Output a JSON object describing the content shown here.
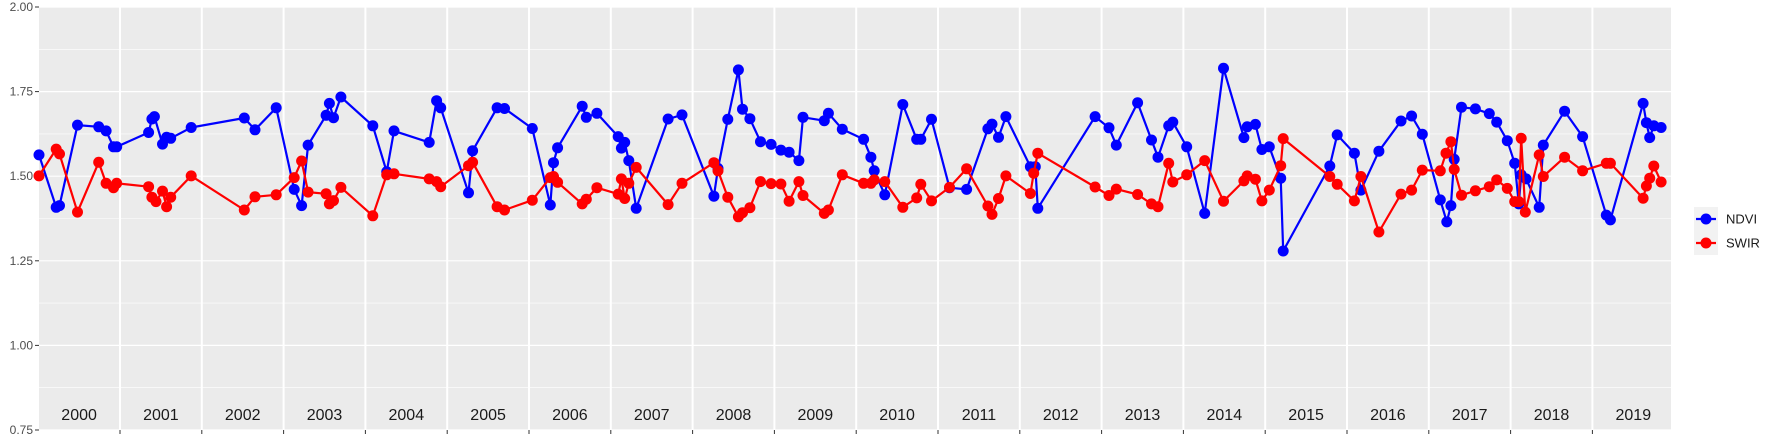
{
  "chart_data": {
    "type": "line",
    "title": "",
    "xlabel": "",
    "ylabel": "",
    "xlim": [
      2000,
      2019.95
    ],
    "ylim": [
      0.75,
      2.0
    ],
    "y_ticks": [
      "0.75",
      "1.00",
      "1.25",
      "1.50",
      "1.75",
      "2.00"
    ],
    "y_tick_values": [
      0.75,
      1.0,
      1.25,
      1.5,
      1.75,
      2.0
    ],
    "year_labels": [
      "2000",
      "2001",
      "2002",
      "2003",
      "2004",
      "2005",
      "2006",
      "2007",
      "2008",
      "2009",
      "2010",
      "2011",
      "2012",
      "2013",
      "2014",
      "2015",
      "2016",
      "2017",
      "2018",
      "2019"
    ],
    "grid": true,
    "legend_position": "right",
    "series": [
      {
        "name": "NDVI",
        "color": "#0000ff",
        "points": [
          [
            2000.01,
            1.563
          ],
          [
            2000.22,
            1.408
          ],
          [
            2000.26,
            1.413
          ],
          [
            2000.48,
            1.651
          ],
          [
            2000.74,
            1.646
          ],
          [
            2000.83,
            1.634
          ],
          [
            2000.92,
            1.587
          ],
          [
            2000.96,
            1.587
          ],
          [
            2001.35,
            1.629
          ],
          [
            2001.39,
            1.669
          ],
          [
            2001.42,
            1.676
          ],
          [
            2001.52,
            1.595
          ],
          [
            2001.57,
            1.615
          ],
          [
            2001.62,
            1.612
          ],
          [
            2001.87,
            1.644
          ],
          [
            2002.52,
            1.672
          ],
          [
            2002.65,
            1.637
          ],
          [
            2002.91,
            1.702
          ],
          [
            2003.13,
            1.461
          ],
          [
            2003.22,
            1.413
          ],
          [
            2003.3,
            1.592
          ],
          [
            2003.52,
            1.68
          ],
          [
            2003.56,
            1.715
          ],
          [
            2003.61,
            1.673
          ],
          [
            2003.7,
            1.734
          ],
          [
            2004.09,
            1.649
          ],
          [
            2004.26,
            1.513
          ],
          [
            2004.35,
            1.634
          ],
          [
            2004.78,
            1.6
          ],
          [
            2004.87,
            1.723
          ],
          [
            2004.92,
            1.702
          ],
          [
            2005.26,
            1.451
          ],
          [
            2005.31,
            1.575
          ],
          [
            2005.61,
            1.702
          ],
          [
            2005.7,
            1.7
          ],
          [
            2006.04,
            1.641
          ],
          [
            2006.26,
            1.415
          ],
          [
            2006.3,
            1.54
          ],
          [
            2006.35,
            1.584
          ],
          [
            2006.65,
            1.707
          ],
          [
            2006.7,
            1.674
          ],
          [
            2006.83,
            1.686
          ],
          [
            2007.09,
            1.617
          ],
          [
            2007.13,
            1.583
          ],
          [
            2007.17,
            1.6
          ],
          [
            2007.22,
            1.546
          ],
          [
            2007.31,
            1.405
          ],
          [
            2007.7,
            1.669
          ],
          [
            2007.87,
            1.681
          ],
          [
            2008.26,
            1.441
          ],
          [
            2008.31,
            1.523
          ],
          [
            2008.43,
            1.668
          ],
          [
            2008.56,
            1.814
          ],
          [
            2008.61,
            1.698
          ],
          [
            2008.7,
            1.67
          ],
          [
            2008.83,
            1.602
          ],
          [
            2008.96,
            1.594
          ],
          [
            2009.08,
            1.577
          ],
          [
            2009.18,
            1.571
          ],
          [
            2009.3,
            1.546
          ],
          [
            2009.35,
            1.674
          ],
          [
            2009.61,
            1.664
          ],
          [
            2009.66,
            1.686
          ],
          [
            2009.83,
            1.639
          ],
          [
            2010.09,
            1.609
          ],
          [
            2010.18,
            1.556
          ],
          [
            2010.22,
            1.516
          ],
          [
            2010.35,
            1.445
          ],
          [
            2010.57,
            1.712
          ],
          [
            2010.74,
            1.609
          ],
          [
            2010.79,
            1.609
          ],
          [
            2010.92,
            1.668
          ],
          [
            2011.14,
            1.466
          ],
          [
            2011.35,
            1.461
          ],
          [
            2011.61,
            1.64
          ],
          [
            2011.66,
            1.654
          ],
          [
            2011.74,
            1.615
          ],
          [
            2011.83,
            1.676
          ],
          [
            2012.13,
            1.528
          ],
          [
            2012.19,
            1.528
          ],
          [
            2012.22,
            1.405
          ],
          [
            2012.92,
            1.676
          ],
          [
            2013.09,
            1.643
          ],
          [
            2013.18,
            1.592
          ],
          [
            2013.44,
            1.717
          ],
          [
            2013.61,
            1.607
          ],
          [
            2013.69,
            1.556
          ],
          [
            2013.82,
            1.649
          ],
          [
            2013.87,
            1.66
          ],
          [
            2014.04,
            1.587
          ],
          [
            2014.26,
            1.39
          ],
          [
            2014.49,
            1.819
          ],
          [
            2014.74,
            1.614
          ],
          [
            2014.78,
            1.646
          ],
          [
            2014.88,
            1.653
          ],
          [
            2014.96,
            1.579
          ],
          [
            2015.05,
            1.587
          ],
          [
            2015.19,
            1.494
          ],
          [
            2015.22,
            1.279
          ],
          [
            2015.79,
            1.53
          ],
          [
            2015.88,
            1.622
          ],
          [
            2016.09,
            1.568
          ],
          [
            2016.17,
            1.459
          ],
          [
            2016.39,
            1.574
          ],
          [
            2016.66,
            1.663
          ],
          [
            2016.79,
            1.678
          ],
          [
            2016.92,
            1.624
          ],
          [
            2017.14,
            1.43
          ],
          [
            2017.22,
            1.365
          ],
          [
            2017.27,
            1.413
          ],
          [
            2017.31,
            1.55
          ],
          [
            2017.4,
            1.704
          ],
          [
            2017.57,
            1.699
          ],
          [
            2017.74,
            1.685
          ],
          [
            2017.83,
            1.66
          ],
          [
            2017.96,
            1.605
          ],
          [
            2018.05,
            1.538
          ],
          [
            2018.1,
            1.418
          ],
          [
            2018.13,
            1.504
          ],
          [
            2018.19,
            1.492
          ],
          [
            2018.35,
            1.408
          ],
          [
            2018.4,
            1.592
          ],
          [
            2018.66,
            1.692
          ],
          [
            2018.88,
            1.617
          ],
          [
            2019.17,
            1.385
          ],
          [
            2019.22,
            1.371
          ],
          [
            2019.62,
            1.715
          ],
          [
            2019.66,
            1.658
          ],
          [
            2019.7,
            1.614
          ],
          [
            2019.75,
            1.649
          ],
          [
            2019.84,
            1.644
          ]
        ]
      },
      {
        "name": "SWIR",
        "color": "#ff0000",
        "points": [
          [
            2000.01,
            1.501
          ],
          [
            2000.22,
            1.58
          ],
          [
            2000.26,
            1.566
          ],
          [
            2000.48,
            1.394
          ],
          [
            2000.74,
            1.541
          ],
          [
            2000.83,
            1.479
          ],
          [
            2000.92,
            1.466
          ],
          [
            2000.96,
            1.479
          ],
          [
            2001.35,
            1.469
          ],
          [
            2001.39,
            1.438
          ],
          [
            2001.44,
            1.425
          ],
          [
            2001.52,
            1.456
          ],
          [
            2001.57,
            1.41
          ],
          [
            2001.62,
            1.438
          ],
          [
            2001.87,
            1.501
          ],
          [
            2002.52,
            1.4
          ],
          [
            2002.65,
            1.439
          ],
          [
            2002.91,
            1.445
          ],
          [
            2003.13,
            1.496
          ],
          [
            2003.22,
            1.545
          ],
          [
            2003.3,
            1.453
          ],
          [
            2003.52,
            1.448
          ],
          [
            2003.56,
            1.418
          ],
          [
            2003.61,
            1.428
          ],
          [
            2003.7,
            1.467
          ],
          [
            2004.09,
            1.383
          ],
          [
            2004.26,
            1.504
          ],
          [
            2004.35,
            1.507
          ],
          [
            2004.78,
            1.492
          ],
          [
            2004.87,
            1.484
          ],
          [
            2004.92,
            1.469
          ],
          [
            2005.26,
            1.531
          ],
          [
            2005.31,
            1.541
          ],
          [
            2005.61,
            1.41
          ],
          [
            2005.7,
            1.4
          ],
          [
            2006.04,
            1.429
          ],
          [
            2006.26,
            1.496
          ],
          [
            2006.3,
            1.499
          ],
          [
            2006.35,
            1.482
          ],
          [
            2006.65,
            1.418
          ],
          [
            2006.7,
            1.432
          ],
          [
            2006.83,
            1.466
          ],
          [
            2007.09,
            1.447
          ],
          [
            2007.13,
            1.492
          ],
          [
            2007.17,
            1.434
          ],
          [
            2007.22,
            1.479
          ],
          [
            2007.31,
            1.526
          ],
          [
            2007.7,
            1.416
          ],
          [
            2007.87,
            1.479
          ],
          [
            2008.26,
            1.54
          ],
          [
            2008.31,
            1.516
          ],
          [
            2008.43,
            1.438
          ],
          [
            2008.56,
            1.38
          ],
          [
            2008.61,
            1.392
          ],
          [
            2008.7,
            1.407
          ],
          [
            2008.83,
            1.484
          ],
          [
            2008.96,
            1.478
          ],
          [
            2009.08,
            1.477
          ],
          [
            2009.18,
            1.426
          ],
          [
            2009.3,
            1.484
          ],
          [
            2009.35,
            1.443
          ],
          [
            2009.61,
            1.39
          ],
          [
            2009.66,
            1.4
          ],
          [
            2009.83,
            1.504
          ],
          [
            2010.09,
            1.479
          ],
          [
            2010.18,
            1.479
          ],
          [
            2010.22,
            1.489
          ],
          [
            2010.35,
            1.484
          ],
          [
            2010.57,
            1.408
          ],
          [
            2010.74,
            1.436
          ],
          [
            2010.79,
            1.476
          ],
          [
            2010.92,
            1.427
          ],
          [
            2011.14,
            1.467
          ],
          [
            2011.35,
            1.522
          ],
          [
            2011.61,
            1.412
          ],
          [
            2011.66,
            1.387
          ],
          [
            2011.74,
            1.434
          ],
          [
            2011.83,
            1.501
          ],
          [
            2012.13,
            1.449
          ],
          [
            2012.17,
            1.509
          ],
          [
            2012.22,
            1.568
          ],
          [
            2012.92,
            1.468
          ],
          [
            2013.09,
            1.443
          ],
          [
            2013.18,
            1.462
          ],
          [
            2013.44,
            1.446
          ],
          [
            2013.61,
            1.418
          ],
          [
            2013.69,
            1.41
          ],
          [
            2013.82,
            1.538
          ],
          [
            2013.87,
            1.483
          ],
          [
            2014.04,
            1.504
          ],
          [
            2014.26,
            1.546
          ],
          [
            2014.49,
            1.426
          ],
          [
            2014.74,
            1.486
          ],
          [
            2014.78,
            1.501
          ],
          [
            2014.88,
            1.491
          ],
          [
            2014.96,
            1.427
          ],
          [
            2015.05,
            1.459
          ],
          [
            2015.19,
            1.531
          ],
          [
            2015.22,
            1.611
          ],
          [
            2015.79,
            1.499
          ],
          [
            2015.88,
            1.476
          ],
          [
            2016.09,
            1.427
          ],
          [
            2016.17,
            1.499
          ],
          [
            2016.39,
            1.335
          ],
          [
            2016.66,
            1.447
          ],
          [
            2016.79,
            1.459
          ],
          [
            2016.92,
            1.518
          ],
          [
            2017.14,
            1.516
          ],
          [
            2017.21,
            1.568
          ],
          [
            2017.27,
            1.602
          ],
          [
            2017.31,
            1.52
          ],
          [
            2017.4,
            1.444
          ],
          [
            2017.57,
            1.457
          ],
          [
            2017.74,
            1.469
          ],
          [
            2017.83,
            1.489
          ],
          [
            2017.96,
            1.464
          ],
          [
            2018.05,
            1.425
          ],
          [
            2018.1,
            1.425
          ],
          [
            2018.13,
            1.612
          ],
          [
            2018.18,
            1.394
          ],
          [
            2018.35,
            1.563
          ],
          [
            2018.4,
            1.499
          ],
          [
            2018.66,
            1.556
          ],
          [
            2018.88,
            1.516
          ],
          [
            2019.17,
            1.538
          ],
          [
            2019.22,
            1.538
          ],
          [
            2019.62,
            1.435
          ],
          [
            2019.66,
            1.471
          ],
          [
            2019.7,
            1.494
          ],
          [
            2019.75,
            1.53
          ],
          [
            2019.84,
            1.483
          ]
        ]
      }
    ]
  }
}
